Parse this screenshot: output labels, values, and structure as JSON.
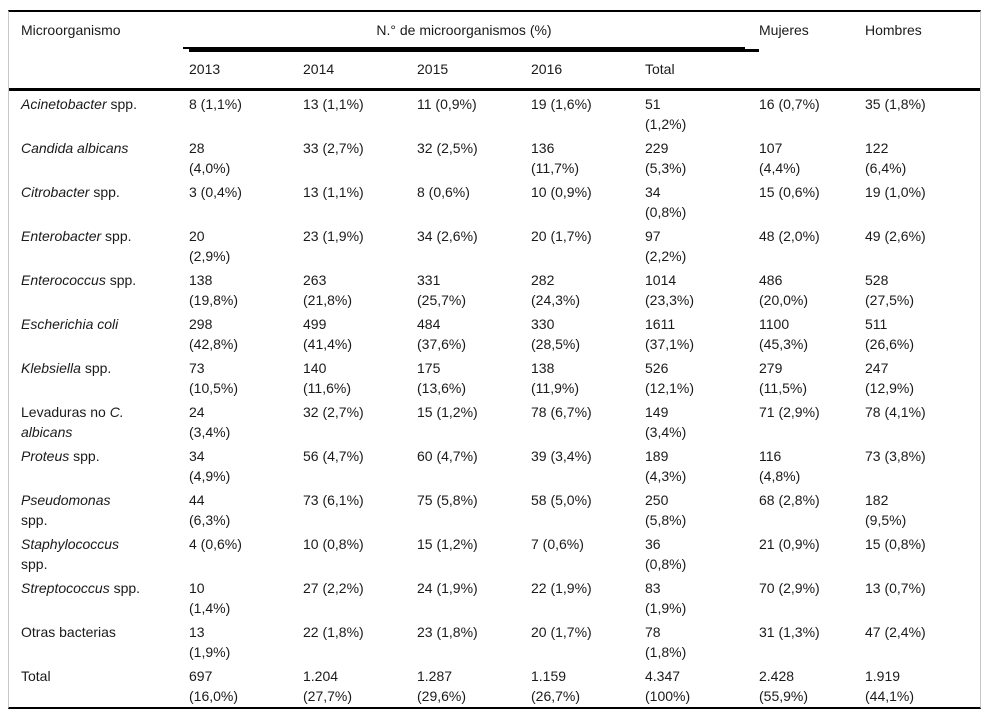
{
  "table": {
    "header": {
      "col_microorganism": "Microorganismo",
      "spanner": "N.° de microorganismos (%)",
      "years": [
        "2013",
        "2014",
        "2015",
        "2016",
        "Total"
      ],
      "col_women": "Mujeres",
      "col_men": "Hombres"
    },
    "rows": [
      {
        "label_lines": [
          [
            {
              "text": "Acinetobacter",
              "italic": true
            },
            {
              "text": " spp.",
              "italic": false
            }
          ]
        ],
        "cells": [
          [
            "8 (1,1%)"
          ],
          [
            "13 (1,1%)"
          ],
          [
            "11 (0,9%)"
          ],
          [
            "19 (1,6%)"
          ],
          [
            "51",
            "(1,2%)"
          ],
          [
            "16 (0,7%)"
          ],
          [
            "35 (1,8%)"
          ]
        ]
      },
      {
        "label_lines": [
          [
            {
              "text": "Candida albicans",
              "italic": true
            }
          ]
        ],
        "cells": [
          [
            "28",
            "(4,0%)"
          ],
          [
            "33 (2,7%)"
          ],
          [
            "32 (2,5%)"
          ],
          [
            "136",
            "(11,7%)"
          ],
          [
            "229",
            "(5,3%)"
          ],
          [
            "107",
            "(4,4%)"
          ],
          [
            "122",
            "(6,4%)"
          ]
        ]
      },
      {
        "label_lines": [
          [
            {
              "text": "Citrobacter",
              "italic": true
            },
            {
              "text": " spp.",
              "italic": false
            }
          ]
        ],
        "cells": [
          [
            "3 (0,4%)"
          ],
          [
            "13 (1,1%)"
          ],
          [
            "8 (0,6%)"
          ],
          [
            "10 (0,9%)"
          ],
          [
            "34",
            "(0,8%)"
          ],
          [
            "15 (0,6%)"
          ],
          [
            "19 (1,0%)"
          ]
        ]
      },
      {
        "label_lines": [
          [
            {
              "text": "Enterobacter",
              "italic": true
            },
            {
              "text": " spp.",
              "italic": false
            }
          ]
        ],
        "cells": [
          [
            "20",
            "(2,9%)"
          ],
          [
            "23 (1,9%)"
          ],
          [
            "34 (2,6%)"
          ],
          [
            "20 (1,7%)"
          ],
          [
            "97",
            "(2,2%)"
          ],
          [
            "48 (2,0%)"
          ],
          [
            "49 (2,6%)"
          ]
        ]
      },
      {
        "label_lines": [
          [
            {
              "text": "Enterococcus",
              "italic": true
            },
            {
              "text": " spp.",
              "italic": false
            }
          ]
        ],
        "cells": [
          [
            "138",
            "(19,8%)"
          ],
          [
            "263",
            "(21,8%)"
          ],
          [
            "331",
            "(25,7%)"
          ],
          [
            "282",
            "(24,3%)"
          ],
          [
            "1014",
            "(23,3%)"
          ],
          [
            "486",
            "(20,0%)"
          ],
          [
            "528",
            "(27,5%)"
          ]
        ]
      },
      {
        "label_lines": [
          [
            {
              "text": "Escherichia coli",
              "italic": true
            }
          ]
        ],
        "cells": [
          [
            "298",
            "(42,8%)"
          ],
          [
            "499",
            "(41,4%)"
          ],
          [
            "484",
            "(37,6%)"
          ],
          [
            "330",
            "(28,5%)"
          ],
          [
            "1611",
            "(37,1%)"
          ],
          [
            "1100",
            "(45,3%)"
          ],
          [
            "511",
            "(26,6%)"
          ]
        ]
      },
      {
        "label_lines": [
          [
            {
              "text": "Klebsiella",
              "italic": true
            },
            {
              "text": " spp.",
              "italic": false
            }
          ]
        ],
        "cells": [
          [
            "73",
            "(10,5%)"
          ],
          [
            "140",
            "(11,6%)"
          ],
          [
            "175",
            "(13,6%)"
          ],
          [
            "138",
            "(11,9%)"
          ],
          [
            "526",
            "(12,1%)"
          ],
          [
            "279",
            "(11,5%)"
          ],
          [
            "247",
            "(12,9%)"
          ]
        ]
      },
      {
        "label_lines": [
          [
            {
              "text": "Levaduras no ",
              "italic": false
            },
            {
              "text": "C.",
              "italic": true
            }
          ],
          [
            {
              "text": "albicans",
              "italic": true
            }
          ]
        ],
        "cells": [
          [
            "24",
            "(3,4%)"
          ],
          [
            "32 (2,7%)"
          ],
          [
            "15 (1,2%)"
          ],
          [
            "78 (6,7%)"
          ],
          [
            "149",
            "(3,4%)"
          ],
          [
            "71 (2,9%)"
          ],
          [
            "78 (4,1%)"
          ]
        ]
      },
      {
        "label_lines": [
          [
            {
              "text": "Proteus",
              "italic": true
            },
            {
              "text": " spp.",
              "italic": false
            }
          ]
        ],
        "cells": [
          [
            "34",
            "(4,9%)"
          ],
          [
            "56 (4,7%)"
          ],
          [
            "60 (4,7%)"
          ],
          [
            "39 (3,4%)"
          ],
          [
            "189",
            "(4,3%)"
          ],
          [
            "116",
            "(4,8%)"
          ],
          [
            "73 (3,8%)"
          ]
        ]
      },
      {
        "label_lines": [
          [
            {
              "text": "Pseudomonas",
              "italic": true
            }
          ],
          [
            {
              "text": "spp.",
              "italic": false
            }
          ]
        ],
        "cells": [
          [
            "44",
            "(6,3%)"
          ],
          [
            "73 (6,1%)"
          ],
          [
            "75 (5,8%)"
          ],
          [
            "58 (5,0%)"
          ],
          [
            "250",
            "(5,8%)"
          ],
          [
            "68 (2,8%)"
          ],
          [
            "182",
            "(9,5%)"
          ]
        ]
      },
      {
        "label_lines": [
          [
            {
              "text": "Staphylococcus",
              "italic": true
            }
          ],
          [
            {
              "text": "spp.",
              "italic": false
            }
          ]
        ],
        "cells": [
          [
            "4 (0,6%)"
          ],
          [
            "10 (0,8%)"
          ],
          [
            "15 (1,2%)"
          ],
          [
            "7 (0,6%)"
          ],
          [
            "36",
            "(0,8%)"
          ],
          [
            "21 (0,9%)"
          ],
          [
            "15 (0,8%)"
          ]
        ]
      },
      {
        "label_lines": [
          [
            {
              "text": "Streptococcus",
              "italic": true
            },
            {
              "text": " spp.",
              "italic": false
            }
          ]
        ],
        "cells": [
          [
            "10",
            "(1,4%)"
          ],
          [
            "27 (2,2%)"
          ],
          [
            "24 (1,9%)"
          ],
          [
            "22 (1,9%)"
          ],
          [
            "83",
            "(1,9%)"
          ],
          [
            "70 (2,9%)"
          ],
          [
            "13 (0,7%)"
          ]
        ]
      },
      {
        "label_lines": [
          [
            {
              "text": "Otras bacterias",
              "italic": false
            }
          ]
        ],
        "cells": [
          [
            "13",
            "(1,9%)"
          ],
          [
            "22 (1,8%)"
          ],
          [
            "23 (1,8%)"
          ],
          [
            "20 (1,7%)"
          ],
          [
            "78",
            "(1,8%)"
          ],
          [
            "31 (1,3%)"
          ],
          [
            "47 (2,4%)"
          ]
        ]
      },
      {
        "label_lines": [
          [
            {
              "text": "Total",
              "italic": false
            }
          ]
        ],
        "cells": [
          [
            "697",
            "(16,0%)"
          ],
          [
            "1.204",
            "(27,7%)"
          ],
          [
            "1.287",
            "(29,6%)"
          ],
          [
            "1.159",
            "(26,7%)"
          ],
          [
            "4.347",
            "(100%)"
          ],
          [
            "2.428",
            "(55,9%)"
          ],
          [
            "1.919",
            "(44,1%)"
          ]
        ]
      }
    ]
  }
}
